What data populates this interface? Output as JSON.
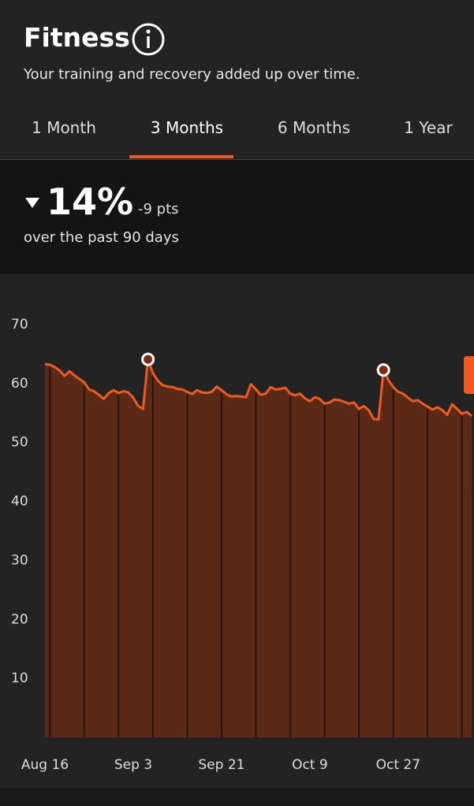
{
  "header": {
    "title": "Fitness",
    "subtitle": "Your training and recovery added up over time."
  },
  "tabs": [
    "1 Month",
    "3 Months",
    "6 Months",
    "1 Year"
  ],
  "active_tab": 1,
  "summary": {
    "change": "14%",
    "points": "-9 pts",
    "period": "over the past 90 days"
  },
  "chart_data": {
    "type": "area",
    "categories": [
      "Aug 16",
      null,
      null,
      null,
      null,
      null,
      null,
      null,
      null,
      null,
      null,
      null,
      null,
      null,
      null,
      null,
      null,
      null,
      "Sep 3",
      null,
      null,
      null,
      null,
      null,
      null,
      null,
      null,
      null,
      null,
      null,
      null,
      null,
      null,
      null,
      null,
      null,
      "Sep 21",
      null,
      null,
      null,
      null,
      null,
      null,
      null,
      null,
      null,
      null,
      null,
      null,
      null,
      null,
      null,
      null,
      null,
      "Oct 9",
      null,
      null,
      null,
      null,
      null,
      null,
      null,
      null,
      null,
      null,
      null,
      null,
      null,
      null,
      null,
      null,
      null,
      "Oct 27",
      null,
      null,
      null,
      null,
      null,
      null,
      null,
      null,
      null,
      null,
      null,
      null,
      null,
      null,
      null
    ],
    "values": [
      63.3,
      63.2,
      62.8,
      62.2,
      61.3,
      62.1,
      61.4,
      60.8,
      60.2,
      59.0,
      58.7,
      58.1,
      57.4,
      58.4,
      58.9,
      58.4,
      58.7,
      58.5,
      57.6,
      56.2,
      55.7,
      64.1,
      61.8,
      60.5,
      59.7,
      59.5,
      59.4,
      59.1,
      59.0,
      58.6,
      58.2,
      58.9,
      58.5,
      58.4,
      58.6,
      59.5,
      58.9,
      58.2,
      57.8,
      57.9,
      57.8,
      57.7,
      59.9,
      59.0,
      58.1,
      58.3,
      59.4,
      59.0,
      59.1,
      59.3,
      58.3,
      58.0,
      58.3,
      57.5,
      57.0,
      57.7,
      57.4,
      56.6,
      56.8,
      57.3,
      57.2,
      56.9,
      56.6,
      56.8,
      55.7,
      56.2,
      55.5,
      54.0,
      53.9,
      62.3,
      60.6,
      59.4,
      58.6,
      58.3,
      57.6,
      57.0,
      57.2,
      56.6,
      56.1,
      55.6,
      56.0,
      55.5,
      54.7,
      56.5,
      55.7,
      54.9,
      55.2,
      54.5
    ],
    "highlight_indices": [
      21,
      69
    ],
    "color": "#f05a1e",
    "ylim": [
      0,
      70
    ],
    "yticks": [
      10,
      20,
      30,
      40,
      50,
      60,
      70
    ]
  }
}
